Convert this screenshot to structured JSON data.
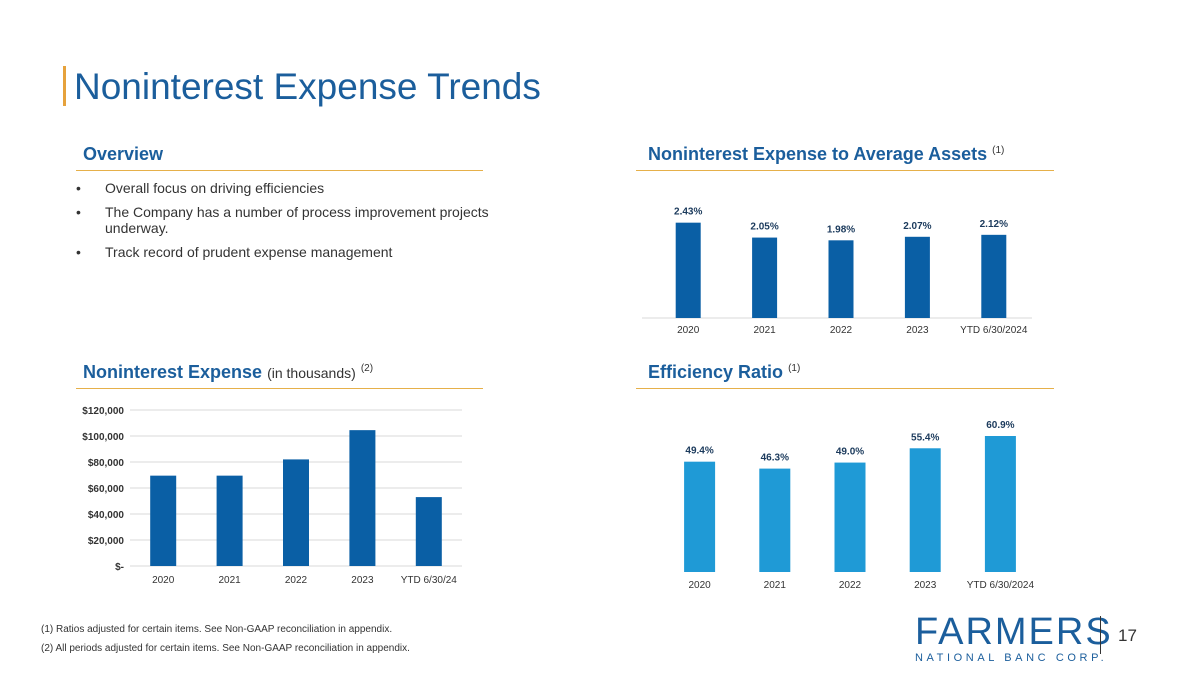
{
  "page": {
    "title": "Noninterest Expense Trends",
    "page_number": "17"
  },
  "overview": {
    "heading": "Overview",
    "bullets": [
      "Overall focus on driving efficiencies",
      "The Company has a number of process improvement projects underway.",
      "Track record of prudent expense management"
    ]
  },
  "headings": {
    "assets": {
      "title": "Noninterest Expense to Average Assets",
      "note": "(1)"
    },
    "expense": {
      "title": "Noninterest Expense",
      "sub": "(in thousands)",
      "note": "(2)"
    },
    "efficiency": {
      "title": "Efficiency Ratio",
      "note": "(1)"
    }
  },
  "footnotes": [
    "(1) Ratios adjusted for certain items. See Non-GAAP reconciliation in appendix.",
    "(2) All periods adjusted for certain items. See Non-GAAP reconciliation in appendix."
  ],
  "logo": {
    "name": "FARMERS",
    "tagline": "NATIONAL BANC CORP."
  },
  "colors": {
    "primary": "#1b5e9c",
    "accent": "#e6a23c",
    "bar_dark": "#0a5fa5",
    "bar_light": "#1f9ad6"
  },
  "chart_data": [
    {
      "id": "assets",
      "type": "bar",
      "title": "Noninterest Expense to Average Assets (1)",
      "categories": [
        "2020",
        "2021",
        "2022",
        "2023",
        "YTD 6/30/2024"
      ],
      "values": [
        2.43,
        2.05,
        1.98,
        2.07,
        2.12
      ],
      "labels": [
        "2.43%",
        "2.05%",
        "1.98%",
        "2.07%",
        "2.12%"
      ],
      "unit": "%",
      "ylim": [
        0,
        2.6
      ],
      "grid": false,
      "color": "#0a5fa5"
    },
    {
      "id": "expense",
      "type": "bar",
      "title": "Noninterest Expense (in thousands) (2)",
      "categories": [
        "2020",
        "2021",
        "2022",
        "2023",
        "YTD 6/30/24"
      ],
      "values": [
        69500,
        69500,
        82000,
        104500,
        53000
      ],
      "yticks": [
        0,
        20000,
        40000,
        60000,
        80000,
        100000,
        120000
      ],
      "ytick_labels": [
        "$-",
        "$20,000",
        "$40,000",
        "$60,000",
        "$80,000",
        "$100,000",
        "$120,000"
      ],
      "ylim": [
        0,
        120000
      ],
      "grid": true,
      "color": "#0a5fa5"
    },
    {
      "id": "efficiency",
      "type": "bar",
      "title": "Efficiency Ratio (1)",
      "categories": [
        "2020",
        "2021",
        "2022",
        "2023",
        "YTD 6/30/2024"
      ],
      "values": [
        49.4,
        46.3,
        49.0,
        55.4,
        60.9
      ],
      "labels": [
        "49.4%",
        "46.3%",
        "49.0%",
        "55.4%",
        "60.9%"
      ],
      "unit": "%",
      "ylim": [
        0,
        60.9
      ],
      "grid": false,
      "color": "#1f9ad6"
    }
  ]
}
